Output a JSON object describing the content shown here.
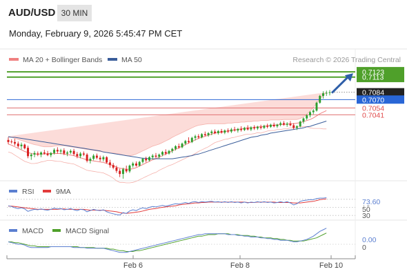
{
  "header": {
    "symbol": "AUD/USD",
    "timeframe": "30 MIN",
    "datetime": "Monday, February 9, 2026 5:45:47 PM CET"
  },
  "legend": {
    "ma20_bb": "MA 20 + Bollinger Bands",
    "ma50": "MA 50",
    "credit": "Research © 2026 Trading Central"
  },
  "colors": {
    "up": "#2e9e2e",
    "down": "#d81e1e",
    "green_level": "#4fa02a",
    "blue": "#2966d6",
    "red_level": "#e07070",
    "ma20": "#f08080",
    "ma50": "#3a5d9a",
    "band_fill": "#fbd6d2",
    "rsi": "#5b7fd0",
    "rsi_ma": "#e23c3c",
    "macd": "#5b7fd0",
    "macd_signal": "#4fa02a"
  },
  "price_tags": {
    "resistance_1": "0.7123",
    "resistance_2": "0.7113",
    "last_price": "0.7084",
    "pivot": "0.7070",
    "support_1": "0.7054",
    "support_2": "0.7041"
  },
  "rsi_panel": {
    "label": "RSI",
    "ma_label": "9MA",
    "value": "73.60",
    "level_70": "70",
    "level_50": "50",
    "level_30": "30"
  },
  "macd_panel": {
    "label": "MACD",
    "signal_label": "MACD Signal",
    "value": "0.00",
    "zero": "0"
  },
  "x_axis": {
    "labels": [
      "Feb 6",
      "Feb 8",
      "Feb 10"
    ]
  },
  "chart_data": {
    "type": "candlestick",
    "y_range_price": [
      0.6915,
      0.7135
    ],
    "levels": {
      "resistance": [
        0.7123,
        0.7113
      ],
      "pivot": 0.707,
      "support": [
        0.7054,
        0.7041
      ],
      "last": 0.7084
    },
    "candles": [
      [
        0.6993,
        0.6998,
        0.6985,
        0.6989
      ],
      [
        0.699,
        0.6994,
        0.6986,
        0.6989
      ],
      [
        0.6989,
        0.6995,
        0.6982,
        0.6986
      ],
      [
        0.6986,
        0.699,
        0.6978,
        0.6981
      ],
      [
        0.6981,
        0.6988,
        0.6975,
        0.6984
      ],
      [
        0.6984,
        0.6986,
        0.6975,
        0.6977
      ],
      [
        0.6978,
        0.6982,
        0.6958,
        0.6962
      ],
      [
        0.6962,
        0.6968,
        0.6955,
        0.6965
      ],
      [
        0.6965,
        0.6972,
        0.696,
        0.6968
      ],
      [
        0.6967,
        0.6971,
        0.6962,
        0.6965
      ],
      [
        0.6965,
        0.6971,
        0.696,
        0.6969
      ],
      [
        0.6969,
        0.6974,
        0.6965,
        0.6967
      ],
      [
        0.6967,
        0.6972,
        0.6962,
        0.6964
      ],
      [
        0.6964,
        0.697,
        0.696,
        0.6968
      ],
      [
        0.6968,
        0.6977,
        0.6965,
        0.6974
      ],
      [
        0.6974,
        0.6979,
        0.6967,
        0.6971
      ],
      [
        0.6971,
        0.6976,
        0.6966,
        0.6973
      ],
      [
        0.6973,
        0.6977,
        0.6964,
        0.6967
      ],
      [
        0.6967,
        0.6972,
        0.6962,
        0.6969
      ],
      [
        0.6969,
        0.6975,
        0.6966,
        0.6972
      ],
      [
        0.6972,
        0.6976,
        0.6963,
        0.6966
      ],
      [
        0.6966,
        0.697,
        0.6958,
        0.6962
      ],
      [
        0.6962,
        0.697,
        0.6958,
        0.6967
      ],
      [
        0.6967,
        0.6971,
        0.6962,
        0.6965
      ],
      [
        0.6965,
        0.6968,
        0.695,
        0.6953
      ],
      [
        0.6953,
        0.696,
        0.6948,
        0.6957
      ],
      [
        0.6957,
        0.6966,
        0.6954,
        0.6963
      ],
      [
        0.6963,
        0.6967,
        0.6956,
        0.6959
      ],
      [
        0.6959,
        0.6963,
        0.6952,
        0.6956
      ],
      [
        0.6956,
        0.6963,
        0.6952,
        0.696
      ],
      [
        0.696,
        0.6962,
        0.6948,
        0.695
      ],
      [
        0.695,
        0.6955,
        0.694,
        0.6945
      ],
      [
        0.6945,
        0.6949,
        0.6937,
        0.694
      ],
      [
        0.694,
        0.6944,
        0.693,
        0.6934
      ],
      [
        0.6934,
        0.6938,
        0.6922,
        0.6928
      ],
      [
        0.6928,
        0.694,
        0.6919,
        0.6937
      ],
      [
        0.6937,
        0.6944,
        0.693,
        0.6933
      ],
      [
        0.6933,
        0.6946,
        0.693,
        0.6944
      ],
      [
        0.6944,
        0.6951,
        0.694,
        0.6948
      ],
      [
        0.6948,
        0.6952,
        0.6942,
        0.6944
      ],
      [
        0.6944,
        0.6953,
        0.6942,
        0.6951
      ],
      [
        0.6951,
        0.6959,
        0.6948,
        0.6957
      ],
      [
        0.6957,
        0.6961,
        0.695,
        0.6954
      ],
      [
        0.6954,
        0.6962,
        0.6952,
        0.696
      ],
      [
        0.696,
        0.6966,
        0.6956,
        0.6963
      ],
      [
        0.6963,
        0.6968,
        0.6958,
        0.6961
      ],
      [
        0.6961,
        0.6967,
        0.6957,
        0.6965
      ],
      [
        0.6965,
        0.6972,
        0.6962,
        0.697
      ],
      [
        0.697,
        0.6975,
        0.6964,
        0.6967
      ],
      [
        0.6967,
        0.6974,
        0.6965,
        0.6972
      ],
      [
        0.6972,
        0.6978,
        0.6968,
        0.6976
      ],
      [
        0.6976,
        0.6983,
        0.6973,
        0.6981
      ],
      [
        0.6981,
        0.6986,
        0.6976,
        0.6979
      ],
      [
        0.6979,
        0.6988,
        0.6977,
        0.6986
      ],
      [
        0.6986,
        0.6993,
        0.6983,
        0.6991
      ],
      [
        0.6991,
        0.6998,
        0.6986,
        0.6989
      ],
      [
        0.6989,
        0.6999,
        0.6987,
        0.6997
      ],
      [
        0.6997,
        0.7003,
        0.6992,
        0.7
      ],
      [
        0.7,
        0.7004,
        0.6995,
        0.6998
      ],
      [
        0.6998,
        0.7006,
        0.6996,
        0.7004
      ],
      [
        0.7004,
        0.7009,
        0.7,
        0.7002
      ],
      [
        0.7002,
        0.7008,
        0.6999,
        0.7006
      ],
      [
        0.7006,
        0.7012,
        0.7002,
        0.7009
      ],
      [
        0.7009,
        0.7013,
        0.7004,
        0.7006
      ],
      [
        0.7006,
        0.7012,
        0.7003,
        0.701
      ],
      [
        0.701,
        0.7014,
        0.7005,
        0.7007
      ],
      [
        0.7007,
        0.7013,
        0.7004,
        0.7011
      ],
      [
        0.7011,
        0.7015,
        0.7006,
        0.7009
      ],
      [
        0.7009,
        0.7016,
        0.7006,
        0.7013
      ],
      [
        0.7013,
        0.7018,
        0.7009,
        0.7011
      ],
      [
        0.7011,
        0.7016,
        0.7007,
        0.7014
      ],
      [
        0.7014,
        0.7019,
        0.7009,
        0.7012
      ],
      [
        0.7012,
        0.7018,
        0.701,
        0.7016
      ],
      [
        0.7016,
        0.7021,
        0.7011,
        0.7013
      ],
      [
        0.7013,
        0.7019,
        0.701,
        0.7017
      ],
      [
        0.7017,
        0.7021,
        0.7012,
        0.7015
      ],
      [
        0.7015,
        0.702,
        0.7012,
        0.7018
      ],
      [
        0.7018,
        0.7022,
        0.7013,
        0.7016
      ],
      [
        0.7016,
        0.7022,
        0.7014,
        0.702
      ],
      [
        0.702,
        0.7024,
        0.7015,
        0.7018
      ],
      [
        0.7018,
        0.7024,
        0.7016,
        0.7022
      ],
      [
        0.7022,
        0.7026,
        0.7017,
        0.7019
      ],
      [
        0.7019,
        0.7024,
        0.7016,
        0.7022
      ],
      [
        0.7022,
        0.7028,
        0.7019,
        0.7025
      ],
      [
        0.7025,
        0.7029,
        0.702,
        0.7022
      ],
      [
        0.7022,
        0.7027,
        0.7018,
        0.7024
      ],
      [
        0.7024,
        0.7029,
        0.7019,
        0.7021
      ],
      [
        0.7021,
        0.7025,
        0.7013,
        0.7016
      ],
      [
        0.7016,
        0.7021,
        0.7012,
        0.7019
      ],
      [
        0.7019,
        0.703,
        0.7017,
        0.7028
      ],
      [
        0.7028,
        0.7036,
        0.7024,
        0.7034
      ],
      [
        0.7034,
        0.7042,
        0.7031,
        0.704
      ],
      [
        0.704,
        0.7048,
        0.7036,
        0.7046
      ],
      [
        0.7046,
        0.7052,
        0.7042,
        0.7049
      ],
      [
        0.7049,
        0.7066,
        0.7047,
        0.7064
      ],
      [
        0.7064,
        0.7079,
        0.7062,
        0.7077
      ],
      [
        0.7077,
        0.7086,
        0.7072,
        0.7082
      ],
      [
        0.7082,
        0.7087,
        0.7077,
        0.7083
      ],
      [
        0.7083,
        0.7088,
        0.7078,
        0.7084
      ]
    ],
    "ma20": [
      0.6985,
      0.6983,
      0.698,
      0.6977,
      0.6974,
      0.6971,
      0.6969,
      0.6967,
      0.6966,
      0.6966,
      0.6966,
      0.6966,
      0.6967,
      0.6967,
      0.6967,
      0.6967,
      0.6967,
      0.6966,
      0.6965,
      0.6964,
      0.6963,
      0.6961,
      0.6959,
      0.6957,
      0.6955,
      0.6954,
      0.6953,
      0.6952,
      0.6951,
      0.695,
      0.6948,
      0.6946,
      0.6944,
      0.6941,
      0.6939,
      0.6938,
      0.6937,
      0.6937,
      0.6938,
      0.694,
      0.6943,
      0.6946,
      0.6949,
      0.6952,
      0.6955,
      0.6957,
      0.696,
      0.6963,
      0.6966,
      0.6969,
      0.6972,
      0.6975,
      0.6978,
      0.6981,
      0.6984,
      0.6987,
      0.699,
      0.6993,
      0.6996,
      0.6998,
      0.7,
      0.7002,
      0.7004,
      0.7006,
      0.7007,
      0.7008,
      0.7009,
      0.701,
      0.7011,
      0.7012,
      0.7013,
      0.7014,
      0.7015,
      0.7016,
      0.7016,
      0.7017,
      0.7018,
      0.7018,
      0.7019,
      0.702,
      0.7021,
      0.7021,
      0.7022,
      0.7022,
      0.7023,
      0.7023,
      0.7024,
      0.7024,
      0.7025,
      0.7026,
      0.7028,
      0.703,
      0.7032,
      0.7035,
      0.7039,
      0.7043,
      0.7046,
      0.7049
    ],
    "bb_upper": [
      0.7,
      0.6998,
      0.6996,
      0.6994,
      0.6992,
      0.699,
      0.6988,
      0.6986,
      0.6984,
      0.6983,
      0.6981,
      0.698,
      0.698,
      0.698,
      0.6981,
      0.6982,
      0.6982,
      0.6982,
      0.6981,
      0.698,
      0.6979,
      0.6978,
      0.6977,
      0.6976,
      0.6975,
      0.6974,
      0.6973,
      0.6972,
      0.6971,
      0.697,
      0.6969,
      0.6968,
      0.6968,
      0.6967,
      0.6966,
      0.6964,
      0.6963,
      0.6963,
      0.6964,
      0.6966,
      0.6969,
      0.6972,
      0.6975,
      0.6978,
      0.6981,
      0.6983,
      0.6985,
      0.6988,
      0.6991,
      0.6994,
      0.6998,
      0.7001,
      0.7004,
      0.7007,
      0.701,
      0.7013,
      0.7016,
      0.7019,
      0.7021,
      0.7022,
      0.7023,
      0.7024,
      0.7024,
      0.7024,
      0.7024,
      0.7024,
      0.7024,
      0.7025,
      0.7025,
      0.7026,
      0.7026,
      0.7027,
      0.7027,
      0.7028,
      0.7028,
      0.7029,
      0.7029,
      0.703,
      0.703,
      0.703,
      0.7031,
      0.7031,
      0.7031,
      0.7031,
      0.7032,
      0.7032,
      0.7032,
      0.7032,
      0.7032,
      0.7034,
      0.7037,
      0.7042,
      0.7048,
      0.7055,
      0.7063,
      0.7071,
      0.7078,
      0.7084
    ],
    "bb_lower": [
      0.697,
      0.6968,
      0.6964,
      0.696,
      0.6956,
      0.6952,
      0.695,
      0.6948,
      0.6948,
      0.6949,
      0.6951,
      0.6952,
      0.6954,
      0.6954,
      0.6953,
      0.6952,
      0.6952,
      0.695,
      0.6949,
      0.6948,
      0.6947,
      0.6944,
      0.6941,
      0.6938,
      0.6935,
      0.6934,
      0.6933,
      0.6932,
      0.6931,
      0.693,
      0.6927,
      0.6924,
      0.692,
      0.6915,
      0.6912,
      0.6912,
      0.6911,
      0.6911,
      0.6912,
      0.6914,
      0.6917,
      0.692,
      0.6923,
      0.6926,
      0.6929,
      0.6931,
      0.6935,
      0.6938,
      0.6941,
      0.6944,
      0.6946,
      0.6949,
      0.6952,
      0.6955,
      0.6958,
      0.6961,
      0.6964,
      0.6967,
      0.6971,
      0.6974,
      0.6977,
      0.698,
      0.6984,
      0.6988,
      0.699,
      0.6992,
      0.6994,
      0.6995,
      0.6997,
      0.6998,
      0.7,
      0.7001,
      0.7003,
      0.7004,
      0.7004,
      0.7005,
      0.7007,
      0.7006,
      0.7008,
      0.701,
      0.7011,
      0.7011,
      0.7013,
      0.7013,
      0.7014,
      0.7014,
      0.7016,
      0.7016,
      0.7018,
      0.7018,
      0.7019,
      0.7018,
      0.7016,
      0.7015,
      0.7015,
      0.7015,
      0.7014,
      0.7014
    ],
    "ma50": [
      0.6999,
      0.6998,
      0.6998,
      0.6997,
      0.6996,
      0.6995,
      0.6994,
      0.6993,
      0.6992,
      0.6991,
      0.699,
      0.6989,
      0.6988,
      0.6987,
      0.6986,
      0.6985,
      0.6984,
      0.6983,
      0.6982,
      0.6981,
      0.698,
      0.6979,
      0.6978,
      0.6977,
      0.6976,
      0.6975,
      0.6974,
      0.6973,
      0.6972,
      0.697,
      0.6969,
      0.6968,
      0.6967,
      0.6966,
      0.6965,
      0.6964,
      0.6963,
      0.6962,
      0.6961,
      0.696,
      0.6959,
      0.6958,
      0.6958,
      0.6957,
      0.6957,
      0.6957,
      0.6957,
      0.6957,
      0.6957,
      0.6957,
      0.6957,
      0.6958,
      0.6959,
      0.696,
      0.6961,
      0.6962,
      0.6963,
      0.6965,
      0.6966,
      0.6968,
      0.697,
      0.6972,
      0.6974,
      0.6976,
      0.6978,
      0.698,
      0.6982,
      0.6984,
      0.6986,
      0.6988,
      0.699,
      0.6992,
      0.6994,
      0.6996,
      0.6998,
      0.6999,
      0.7,
      0.7002,
      0.7003,
      0.7004,
      0.7006,
      0.7007,
      0.7008,
      0.7009,
      0.701,
      0.7011,
      0.7012,
      0.7013,
      0.7014,
      0.7015,
      0.7016,
      0.7018,
      0.7019,
      0.7021,
      0.7023,
      0.7025,
      0.7027,
      0.7029
    ],
    "rsi": [
      54,
      52,
      49,
      47,
      49,
      46,
      40,
      43,
      45,
      44,
      46,
      44,
      43,
      45,
      48,
      46,
      47,
      44,
      45,
      47,
      44,
      42,
      45,
      44,
      39,
      42,
      45,
      43,
      42,
      44,
      39,
      36,
      34,
      32,
      31,
      37,
      35,
      41,
      44,
      42,
      46,
      49,
      47,
      50,
      52,
      51,
      53,
      55,
      53,
      55,
      57,
      59,
      58,
      60,
      62,
      60,
      63,
      64,
      62,
      64,
      63,
      64,
      65,
      63,
      64,
      62,
      64,
      62,
      64,
      62,
      63,
      61,
      63,
      61,
      63,
      62,
      64,
      62,
      64,
      62,
      63,
      61,
      62,
      64,
      62,
      64,
      61,
      56,
      59,
      65,
      67,
      68,
      69,
      69,
      72,
      73,
      73,
      74
    ],
    "rsi_ma": [
      53,
      53,
      52,
      51,
      50,
      49,
      48,
      47,
      46,
      45,
      45,
      45,
      45,
      45,
      45,
      45,
      46,
      46,
      45,
      45,
      45,
      45,
      45,
      45,
      44,
      43,
      43,
      43,
      43,
      43,
      42,
      41,
      40,
      39,
      37,
      36,
      35,
      36,
      37,
      38,
      39,
      41,
      43,
      45,
      46,
      47,
      49,
      50,
      51,
      52,
      53,
      54,
      56,
      57,
      58,
      59,
      60,
      61,
      61,
      62,
      62,
      63,
      63,
      63,
      63,
      63,
      63,
      63,
      63,
      63,
      63,
      63,
      63,
      62,
      62,
      62,
      63,
      63,
      63,
      63,
      63,
      63,
      62,
      62,
      62,
      62,
      62,
      61,
      61,
      61,
      62,
      63,
      64,
      65,
      67,
      69,
      70,
      71
    ],
    "macd": [
      0.0003,
      0.0002,
      0.0001,
      0.0,
      0.0,
      -0.0001,
      -0.0003,
      -0.0004,
      -0.0004,
      -0.0004,
      -0.0004,
      -0.0004,
      -0.0004,
      -0.0003,
      -0.0003,
      -0.0003,
      -0.0003,
      -0.0003,
      -0.0003,
      -0.0003,
      -0.0004,
      -0.0004,
      -0.0004,
      -0.0004,
      -0.0005,
      -0.0005,
      -0.0005,
      -0.0005,
      -0.0005,
      -0.0005,
      -0.0006,
      -0.0007,
      -0.0008,
      -0.0009,
      -0.001,
      -0.001,
      -0.001,
      -0.0009,
      -0.0008,
      -0.0007,
      -0.0006,
      -0.0005,
      -0.0004,
      -0.0003,
      -0.0002,
      -0.0001,
      0.0,
      0.0001,
      0.0002,
      0.0003,
      0.0004,
      0.0005,
      0.0006,
      0.0007,
      0.0008,
      0.0009,
      0.001,
      0.0011,
      0.0012,
      0.0012,
      0.0013,
      0.0013,
      0.0013,
      0.0013,
      0.0013,
      0.0013,
      0.0013,
      0.0012,
      0.0012,
      0.0012,
      0.0011,
      0.0011,
      0.001,
      0.001,
      0.0009,
      0.0009,
      0.0009,
      0.0008,
      0.0008,
      0.0007,
      0.0007,
      0.0006,
      0.0006,
      0.0005,
      0.0005,
      0.0005,
      0.0004,
      0.0003,
      0.0003,
      0.0004,
      0.0005,
      0.0006,
      0.0008,
      0.001,
      0.0013,
      0.0016,
      0.0018,
      0.002
    ],
    "macd_signal": [
      0.0003,
      0.0003,
      0.0002,
      0.0002,
      0.0001,
      0.0,
      -0.0001,
      -0.0002,
      -0.0002,
      -0.0003,
      -0.0003,
      -0.0003,
      -0.0003,
      -0.0003,
      -0.0003,
      -0.0003,
      -0.0003,
      -0.0003,
      -0.0003,
      -0.0003,
      -0.0003,
      -0.0003,
      -0.0004,
      -0.0004,
      -0.0004,
      -0.0004,
      -0.0004,
      -0.0005,
      -0.0005,
      -0.0005,
      -0.0005,
      -0.0006,
      -0.0006,
      -0.0007,
      -0.0008,
      -0.0008,
      -0.0009,
      -0.0009,
      -0.0009,
      -0.0008,
      -0.0008,
      -0.0007,
      -0.0006,
      -0.0005,
      -0.0004,
      -0.0003,
      -0.0002,
      -0.0001,
      0.0,
      0.0001,
      0.0002,
      0.0003,
      0.0004,
      0.0005,
      0.0006,
      0.0007,
      0.0008,
      0.0009,
      0.001,
      0.001,
      0.0011,
      0.0012,
      0.0012,
      0.0012,
      0.0013,
      0.0013,
      0.0013,
      0.0013,
      0.0012,
      0.0012,
      0.0012,
      0.0011,
      0.0011,
      0.0011,
      0.001,
      0.001,
      0.0009,
      0.0009,
      0.0008,
      0.0008,
      0.0008,
      0.0007,
      0.0007,
      0.0006,
      0.0006,
      0.0005,
      0.0005,
      0.0004,
      0.0004,
      0.0004,
      0.0004,
      0.0005,
      0.0006,
      0.0007,
      0.0008,
      0.001,
      0.0012,
      0.0014
    ]
  }
}
